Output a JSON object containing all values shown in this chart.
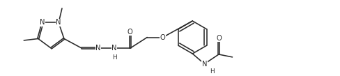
{
  "bg_color": "#ffffff",
  "line_color": "#2a2a2a",
  "fig_width": 4.89,
  "fig_height": 1.09,
  "dpi": 100,
  "line_width": 1.15,
  "font_size": 7.2,
  "xlim": [
    0,
    10.0
  ],
  "ylim": [
    0,
    2.2
  ]
}
